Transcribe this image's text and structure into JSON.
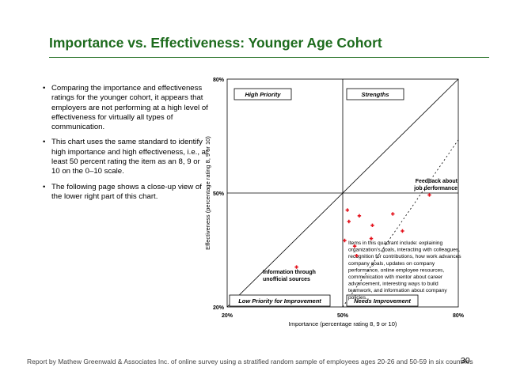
{
  "title": "Importance vs. Effectiveness: Younger Age Cohort",
  "bullets": [
    "Comparing the importance and effectiveness ratings for the younger cohort, it appears that employers are not performing at a high level of effectiveness for virtually all types of communication.",
    "This chart uses the same standard to identify high importance and high effectiveness, i.e., at least 50 percent rating the item as an 8, 9 or 10 on the 0–10 scale.",
    "The following page shows a close-up view of the lower right part of this chart."
  ],
  "chart_data": {
    "type": "scatter",
    "xlabel": "Importance (percentage rating 8, 9 or 10)",
    "ylabel": "Effectiveness (percentage rating 8, 9 or 10)",
    "xlim": [
      20,
      80
    ],
    "ylim": [
      20,
      80
    ],
    "xticks": [
      "20%",
      "50%",
      "80%"
    ],
    "yticks": [
      "20%",
      "50%",
      "80%"
    ],
    "quadrant_labels": {
      "top_left": "High Priority",
      "top_right": "Strengths",
      "bottom_left": "Low Priority for Improvement",
      "bottom_right": "Needs Improvement"
    },
    "points": [
      {
        "x": 51.2,
        "y": 45.5
      },
      {
        "x": 51.6,
        "y": 42.5
      },
      {
        "x": 54.3,
        "y": 44.0
      },
      {
        "x": 57.7,
        "y": 41.5
      },
      {
        "x": 57.4,
        "y": 38.0
      },
      {
        "x": 50.5,
        "y": 37.5
      },
      {
        "x": 53.1,
        "y": 36.0
      },
      {
        "x": 63.0,
        "y": 44.5
      },
      {
        "x": 65.5,
        "y": 40.0
      },
      {
        "x": 72.5,
        "y": 49.5
      },
      {
        "x": 53.6,
        "y": 33.5
      },
      {
        "x": 38.0,
        "y": 30.5
      }
    ],
    "annotations": [
      {
        "id": "feedback",
        "text": [
          "Feedback about",
          "job performance"
        ]
      },
      {
        "id": "info",
        "text": [
          "Information through",
          "unofficial sources"
        ]
      },
      {
        "id": "quadrant-note",
        "text": [
          "Items in this quadrant include: explaining",
          "organization’s goals, interacting with colleagues,",
          "recognition for contributions, how work advances",
          "company goals, updates on company",
          "performance, online employee resources,",
          "communication with mentor about career",
          "advancement, interesting ways to build",
          "teamwork, and information about  company",
          "policies."
        ]
      }
    ],
    "grid": false,
    "marker_color": "#e4111b",
    "line_color": "#000000"
  },
  "footer": "Report by Mathew Greenwald & Associates Inc. of online survey using a stratified random sample of employees ages 20-26 and 50-59 in six countries",
  "page_number": "30"
}
